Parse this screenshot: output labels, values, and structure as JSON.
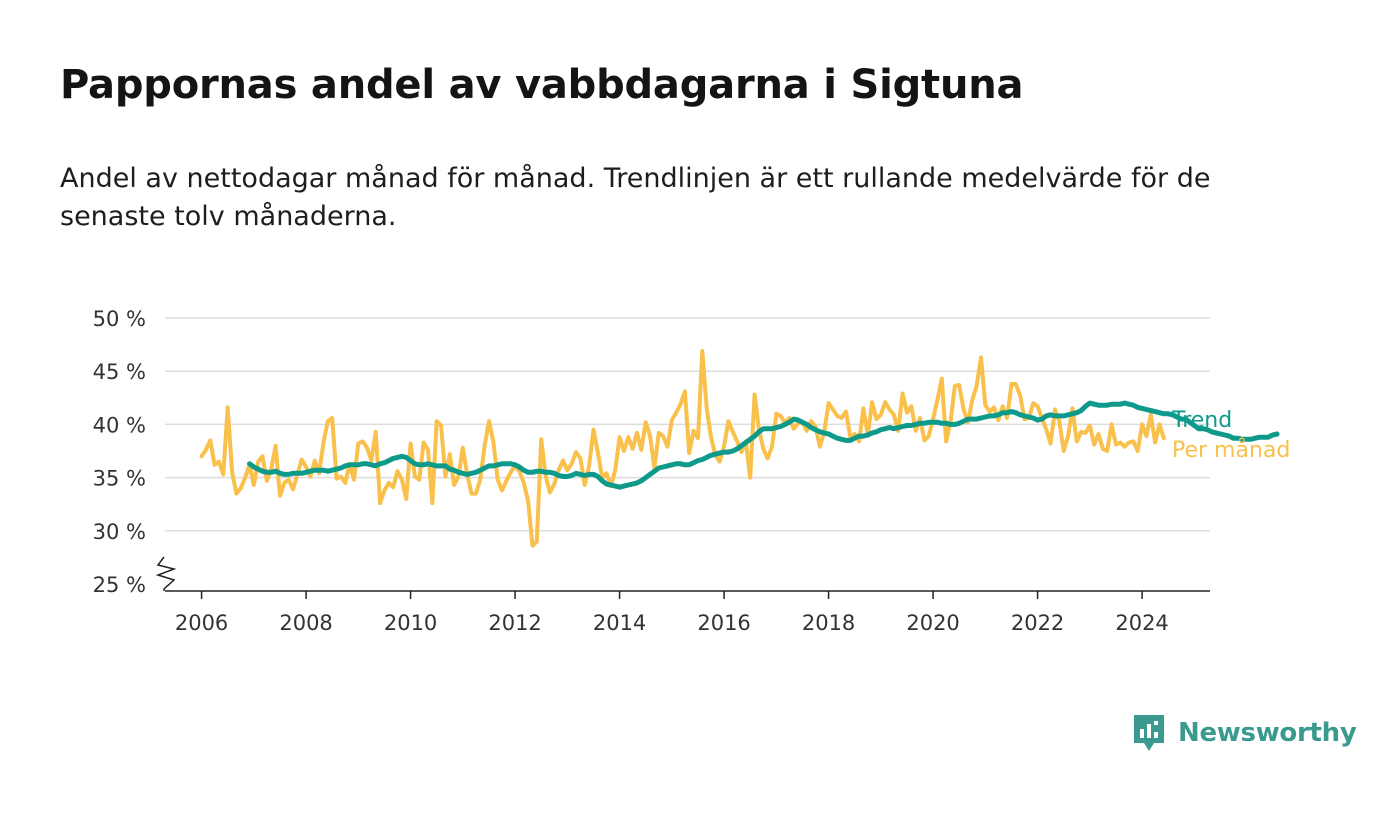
{
  "title": "Pappornas andel av vabbdagarna i Sigtuna",
  "subtitle": "Andel av nettodagar månad för månad. Trendlinjen är ett rullande medelvärde för de senaste tolv månaderna.",
  "brand": {
    "name": "Newsworthy",
    "color": "#3a9a8f"
  },
  "chart_data": {
    "type": "line",
    "title": "Pappornas andel av vabbdagarna i Sigtuna",
    "xlabel": "",
    "ylabel": "",
    "ylim": [
      25,
      50
    ],
    "xlim": [
      2005.3,
      2025.3
    ],
    "y_ticks": [
      25,
      30,
      35,
      40,
      45,
      50
    ],
    "y_tick_labels": [
      "25 %",
      "30 %",
      "35 %",
      "40 %",
      "45 %",
      "50 %"
    ],
    "x_ticks": [
      2006,
      2008,
      2010,
      2012,
      2014,
      2016,
      2018,
      2020,
      2022,
      2024
    ],
    "x_tick_labels": [
      "2006",
      "2008",
      "2010",
      "2012",
      "2014",
      "2016",
      "2018",
      "2020",
      "2022",
      "2024"
    ],
    "grid": "horizontal",
    "axis_break": true,
    "legend": "inline labels at right end of lines",
    "series": [
      {
        "name": "Per månad",
        "color": "#f9c04b",
        "start": "2006-01",
        "frequency": "monthly",
        "values": [
          37,
          37.6,
          38.5,
          36.2,
          36.5,
          35.3,
          41.6,
          35.5,
          33.5,
          34,
          35,
          36.2,
          34.3,
          36.5,
          37,
          34.7,
          35.8,
          38,
          33.3,
          34.5,
          34.8,
          33.9,
          35.3,
          36.7,
          36,
          35.1,
          36.6,
          35.4,
          38.3,
          40.3,
          40.6,
          34.9,
          35.1,
          34.5,
          36.3,
          34.8,
          38.2,
          38.4,
          37.8,
          36.6,
          39.3,
          32.6,
          33.8,
          34.5,
          34.1,
          35.6,
          34.8,
          33,
          38.2,
          35.1,
          34.8,
          38.3,
          37.6,
          32.6,
          40.3,
          39.9,
          35.1,
          37.2,
          34.3,
          35.1,
          37.8,
          35.3,
          33.5,
          33.5,
          34.8,
          38,
          40.3,
          38.4,
          34.8,
          33.8,
          34.7,
          35.5,
          36.1,
          35.6,
          34.5,
          32.8,
          28.6,
          29,
          38.6,
          35.2,
          33.6,
          34.4,
          35.7,
          36.6,
          35.7,
          36.3,
          37.4,
          36.8,
          34.3,
          36.1,
          39.5,
          37.4,
          35,
          35.4,
          34.2,
          35.7,
          38.8,
          37.5,
          38.8,
          37.7,
          39.2,
          37.6,
          40.2,
          38.9,
          35.9,
          39.2,
          38.9,
          37.9,
          40.4,
          41.1,
          41.9,
          43.1,
          37.3,
          39.4,
          38.7,
          46.9,
          41.5,
          38.8,
          37.1,
          36.5,
          38,
          40.3,
          39.3,
          38.4,
          37.4,
          38.4,
          35,
          42.8,
          39.6,
          37.7,
          36.8,
          37.9,
          41,
          40.8,
          40.1,
          40.6,
          39.6,
          40.1,
          40.2,
          39.4,
          40.3,
          39.8,
          37.9,
          39.3,
          42,
          41.4,
          40.8,
          40.6,
          41.2,
          38.8,
          39.1,
          38.4,
          41.5,
          39,
          42.1,
          40.5,
          40.9,
          42.1,
          41.4,
          40.9,
          39.4,
          42.9,
          41.1,
          41.7,
          39.4,
          40.6,
          38.5,
          38.9,
          40.5,
          42.3,
          44.3,
          38.4,
          40.2,
          43.6,
          43.7,
          41.4,
          40.2,
          42.3,
          43.6,
          46.3,
          41.8,
          41.2,
          41.6,
          40.4,
          41.7,
          40.6,
          43.8,
          43.8,
          42.7,
          40.5,
          40.6,
          42,
          41.7,
          40.6,
          39.5,
          38.2,
          41.4,
          40.3,
          37.5,
          38.9,
          41.5,
          38.4,
          39.3,
          39.2,
          39.9,
          38.1,
          39.1,
          37.7,
          37.5,
          40,
          38.1,
          38.3,
          37.9,
          38.3,
          38.4,
          37.5,
          40,
          38.9,
          40.9,
          38.3,
          40,
          38.7
        ]
      },
      {
        "name": "Trend",
        "color": "#0e9a8a",
        "start": "2006-12",
        "frequency": "monthly",
        "values": [
          36.3,
          36,
          35.8,
          35.6,
          35.5,
          35.5,
          35.6,
          35.4,
          35.3,
          35.3,
          35.4,
          35.4,
          35.4,
          35.5,
          35.6,
          35.7,
          35.7,
          35.7,
          35.6,
          35.7,
          35.8,
          35.9,
          36.1,
          36.2,
          36.2,
          36.2,
          36.3,
          36.3,
          36.2,
          36.1,
          36.3,
          36.4,
          36.6,
          36.8,
          36.9,
          37,
          36.9,
          36.6,
          36.3,
          36.2,
          36.2,
          36.3,
          36.2,
          36.1,
          36.1,
          36.1,
          35.8,
          35.7,
          35.5,
          35.4,
          35.3,
          35.4,
          35.5,
          35.7,
          35.9,
          36.1,
          36.1,
          36.2,
          36.3,
          36.3,
          36.3,
          36.2,
          36,
          35.7,
          35.5,
          35.5,
          35.6,
          35.6,
          35.5,
          35.5,
          35.4,
          35.2,
          35.1,
          35.1,
          35.2,
          35.4,
          35.3,
          35.2,
          35.3,
          35.3,
          35.1,
          34.7,
          34.4,
          34.3,
          34.2,
          34.1,
          34.2,
          34.3,
          34.4,
          34.5,
          34.7,
          35,
          35.3,
          35.6,
          35.9,
          36,
          36.1,
          36.2,
          36.3,
          36.3,
          36.2,
          36.2,
          36.4,
          36.6,
          36.7,
          36.9,
          37.1,
          37.2,
          37.3,
          37.4,
          37.4,
          37.5,
          37.7,
          38,
          38.3,
          38.6,
          38.9,
          39.3,
          39.6,
          39.6,
          39.6,
          39.7,
          39.8,
          40,
          40.2,
          40.5,
          40.4,
          40.2,
          40,
          39.7,
          39.5,
          39.3,
          39.2,
          39.1,
          38.9,
          38.7,
          38.6,
          38.5,
          38.5,
          38.7,
          38.9,
          38.9,
          39,
          39.2,
          39.3,
          39.5,
          39.6,
          39.7,
          39.6,
          39.7,
          39.8,
          39.9,
          39.9,
          40,
          40.1,
          40.1,
          40.2,
          40.2,
          40.2,
          40.1,
          40.1,
          40,
          40,
          40.1,
          40.3,
          40.5,
          40.5,
          40.5,
          40.6,
          40.7,
          40.8,
          40.8,
          40.9,
          41.1,
          41.1,
          41.2,
          41.1,
          40.9,
          40.8,
          40.7,
          40.6,
          40.4,
          40.5,
          40.8,
          40.9,
          40.8,
          40.8,
          40.8,
          40.9,
          41,
          41.1,
          41.3,
          41.7,
          42,
          41.9,
          41.8,
          41.8,
          41.8,
          41.9,
          41.9,
          41.9,
          42,
          41.9,
          41.8,
          41.6,
          41.5,
          41.4,
          41.3,
          41.2,
          41.1,
          41,
          41,
          40.9,
          40.7,
          40.5,
          40.5,
          40.2,
          39.9,
          39.6,
          39.6,
          39.5,
          39.3,
          39.2,
          39.1,
          39,
          38.9,
          38.7,
          38.7,
          38.6,
          38.6,
          38.6,
          38.7,
          38.8,
          38.8,
          38.8,
          39,
          39.1
        ]
      }
    ]
  }
}
